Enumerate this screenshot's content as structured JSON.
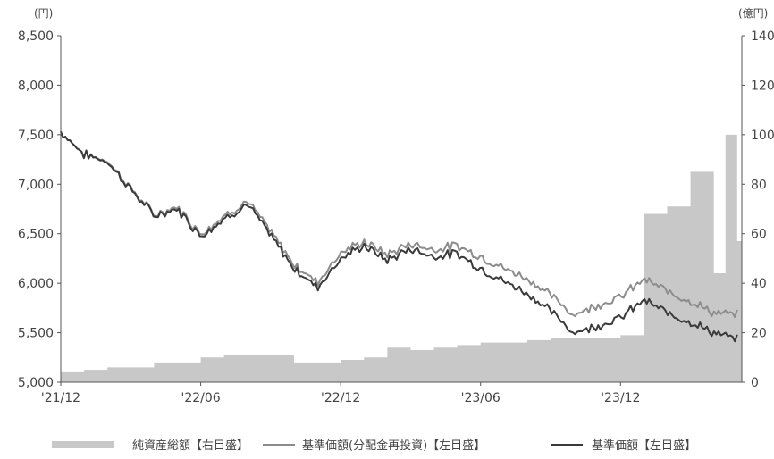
{
  "chart_data": {
    "type": "line",
    "x_unit": "year-month",
    "x_tick_labels": [
      "'21/12",
      "'22/06",
      "'22/12",
      "'23/06",
      "'23/12"
    ],
    "y_left": {
      "unit_label": "(円)",
      "ylim": [
        5000,
        8500
      ],
      "ticks": [
        "5,000",
        "5,500",
        "6,000",
        "6,500",
        "7,000",
        "7,500",
        "8,000",
        "8,500"
      ]
    },
    "y_right": {
      "unit_label": "(億円)",
      "ylim": [
        0,
        140
      ],
      "ticks": [
        "0",
        "20",
        "40",
        "60",
        "80",
        "100",
        "120",
        "140"
      ]
    },
    "legend": [
      {
        "label": "純資産総額【右目盛】",
        "color": "#c8c8c8"
      },
      {
        "label": "基準価額(分配金再投資)【左目盛】",
        "color": "#8c8c8c"
      },
      {
        "label": "基準価額【左目盛】",
        "color": "#3a3a3a"
      }
    ],
    "series": [
      {
        "name": "基準価額【左目盛】",
        "axis": "left",
        "kind": "line",
        "color": "#3a3a3a",
        "x": [
          "2021-12",
          "2022-01",
          "2022-02",
          "2022-03",
          "2022-04",
          "2022-05",
          "2022-06",
          "2022-07",
          "2022-08",
          "2022-09",
          "2022-10",
          "2022-11",
          "2022-12",
          "2023-01",
          "2023-02",
          "2023-03",
          "2023-04",
          "2023-05",
          "2023-06",
          "2023-07",
          "2023-08",
          "2023-09",
          "2023-10",
          "2023-11",
          "2023-12",
          "2024-01",
          "2024-02",
          "2024-03",
          "2024-04",
          "2024-05"
        ],
        "values": [
          7530,
          7300,
          7230,
          6950,
          6680,
          6750,
          6480,
          6650,
          6800,
          6480,
          6150,
          5960,
          6250,
          6380,
          6230,
          6350,
          6270,
          6300,
          6150,
          6020,
          5900,
          5720,
          5500,
          5570,
          5650,
          5830,
          5700,
          5610,
          5500,
          5430
        ]
      },
      {
        "name": "基準価額(分配金再投資)【左目盛】",
        "axis": "left",
        "kind": "line",
        "color": "#8c8c8c",
        "x": [
          "2021-12",
          "2022-01",
          "2022-02",
          "2022-03",
          "2022-04",
          "2022-05",
          "2022-06",
          "2022-07",
          "2022-08",
          "2022-09",
          "2022-10",
          "2022-11",
          "2022-12",
          "2023-01",
          "2023-02",
          "2023-03",
          "2023-04",
          "2023-05",
          "2023-06",
          "2023-07",
          "2023-08",
          "2023-09",
          "2023-10",
          "2023-11",
          "2023-12",
          "2024-01",
          "2024-02",
          "2024-03",
          "2024-04",
          "2024-05"
        ],
        "values": [
          7530,
          7300,
          7240,
          6960,
          6690,
          6770,
          6500,
          6680,
          6830,
          6520,
          6190,
          6010,
          6310,
          6420,
          6290,
          6400,
          6340,
          6380,
          6270,
          6150,
          6050,
          5880,
          5680,
          5780,
          5860,
          6040,
          5920,
          5820,
          5700,
          5680
        ]
      },
      {
        "name": "純資産総額【右目盛】",
        "axis": "right",
        "kind": "area",
        "color": "#c8c8c8",
        "x": [
          "2021-12",
          "2022-01",
          "2022-02",
          "2022-03",
          "2022-04",
          "2022-05",
          "2022-06",
          "2022-07",
          "2022-08",
          "2022-09",
          "2022-10",
          "2022-11",
          "2022-12",
          "2023-01",
          "2023-02",
          "2023-03",
          "2023-04",
          "2023-05",
          "2023-06",
          "2023-07",
          "2023-08",
          "2023-09",
          "2023-10",
          "2023-11",
          "2023-12",
          "2024-01",
          "2024-02",
          "2024-03",
          "2024-04",
          "2024-04b",
          "2024-05"
        ],
        "values": [
          4,
          5,
          6,
          6,
          8,
          8,
          10,
          11,
          11,
          11,
          8,
          8,
          9,
          10,
          14,
          13,
          14,
          15,
          16,
          16,
          17,
          18,
          18,
          18,
          19,
          68,
          71,
          85,
          44,
          100,
          57
        ]
      }
    ],
    "grid": false
  }
}
